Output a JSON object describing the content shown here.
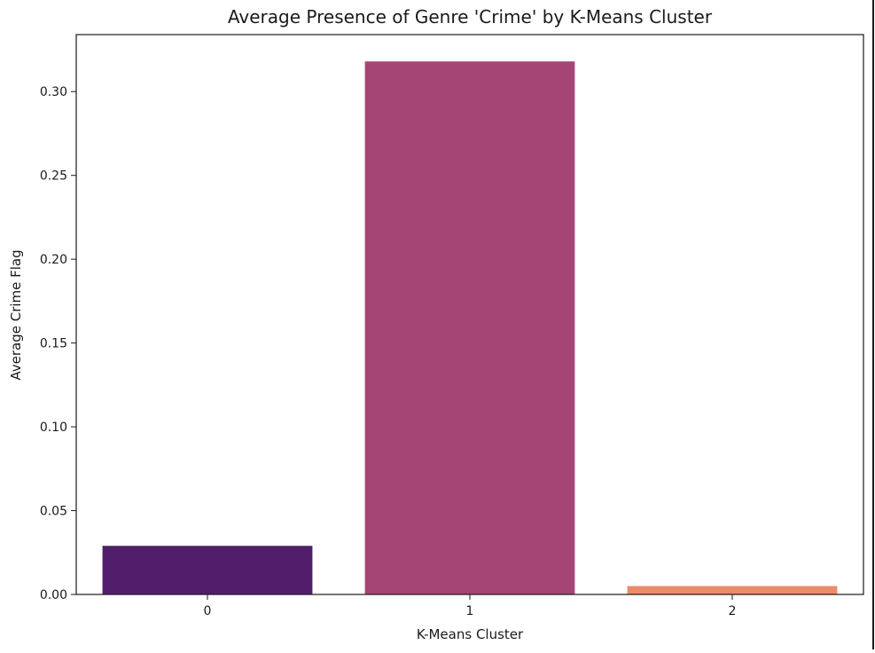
{
  "chart_data": {
    "type": "bar",
    "title": "Average Presence of Genre 'Crime' by K-Means Cluster",
    "xlabel": "K-Means Cluster",
    "ylabel": "Average Crime Flag",
    "categories": [
      "0",
      "1",
      "2"
    ],
    "values": [
      0.029,
      0.318,
      0.005
    ],
    "colors": [
      "#521e6b",
      "#a44575",
      "#ec8b67"
    ],
    "ylim": [
      0,
      0.334
    ],
    "yticks": [
      0.0,
      0.05,
      0.1,
      0.15,
      0.2,
      0.25,
      0.3
    ],
    "ytick_labels": [
      "0.00",
      "0.05",
      "0.10",
      "0.15",
      "0.20",
      "0.25",
      "0.30"
    ],
    "grid": false,
    "legend": "none"
  }
}
